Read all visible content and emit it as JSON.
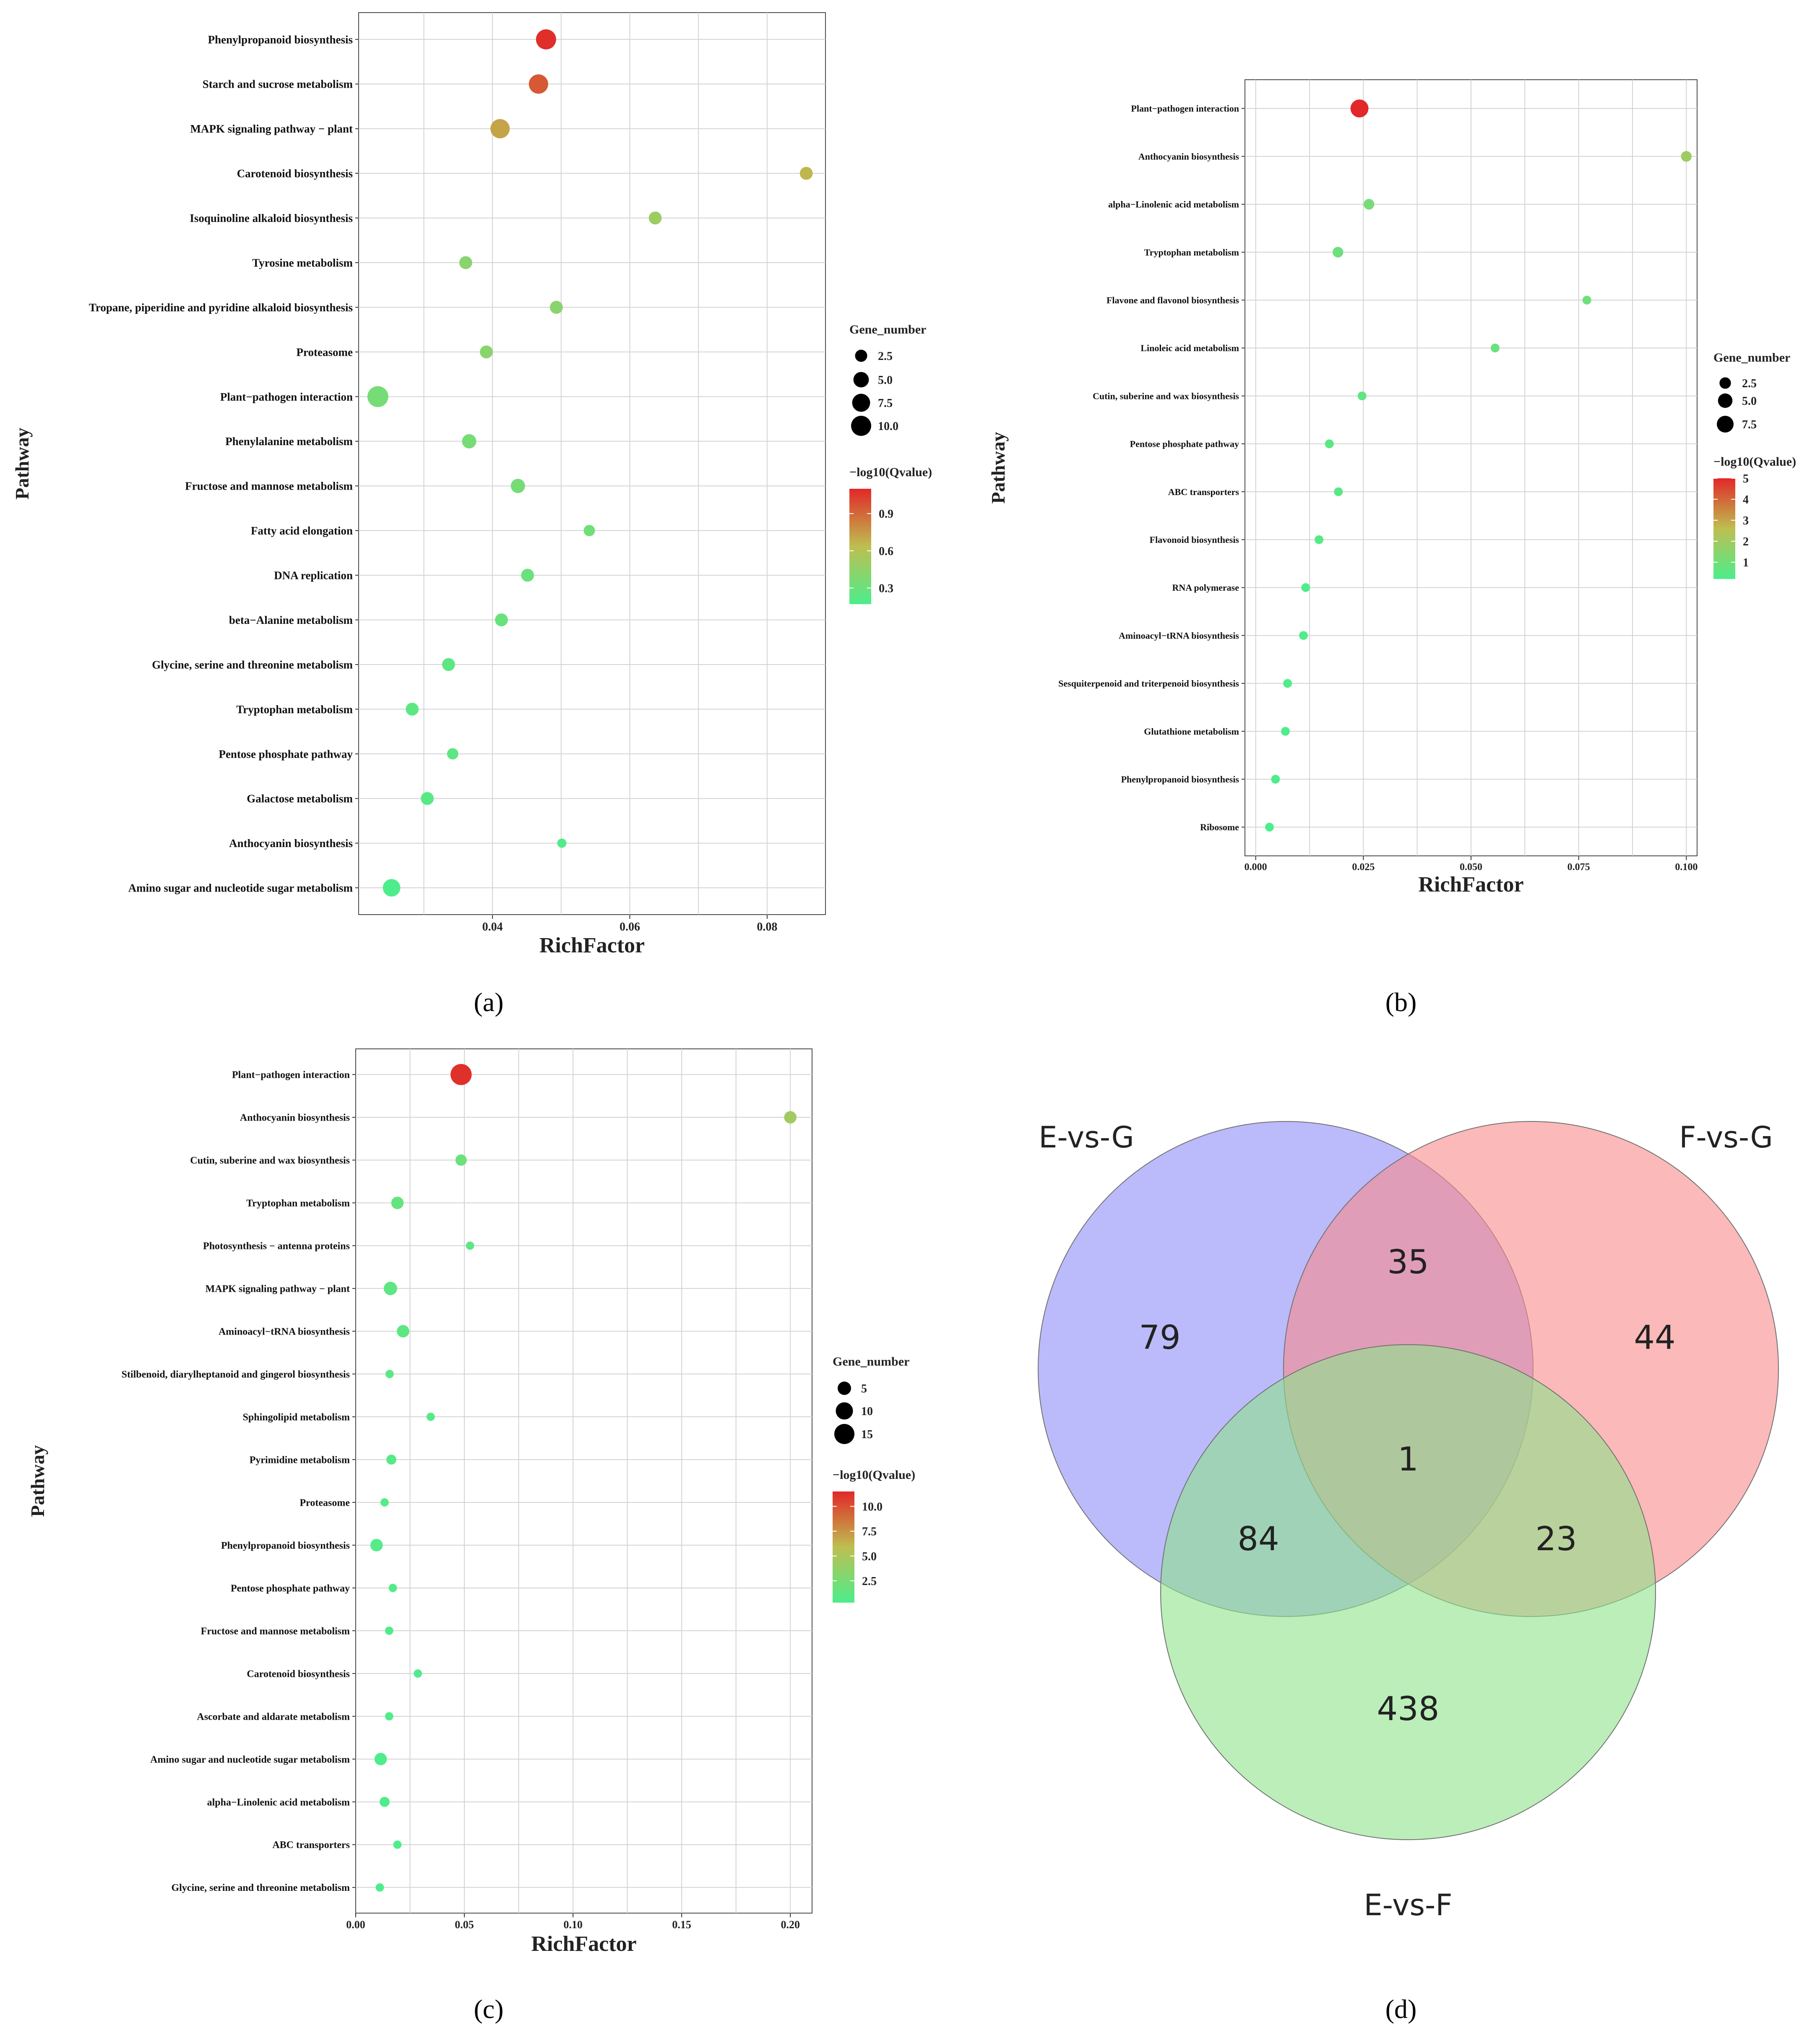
{
  "panels": {
    "a": {
      "caption": "(a)"
    },
    "b": {
      "caption": "(b)"
    },
    "c": {
      "caption": "(c)"
    },
    "d": {
      "caption": "(d)"
    }
  },
  "chart_data": [
    {
      "id": "a",
      "type": "scatter",
      "xlabel": "RichFactor",
      "ylabel": "Pathway",
      "xlim": [
        0.0205,
        0.0885
      ],
      "xticks": [
        0.04,
        0.06,
        0.08
      ],
      "tick_labels": [
        "0.04",
        "0.06",
        "0.08"
      ],
      "size_legend": {
        "title": "Gene_number",
        "values": [
          2.5,
          5.0,
          7.5,
          10.0
        ],
        "labels": [
          "2.5",
          "5.0",
          "7.5",
          "10.0"
        ]
      },
      "color_legend": {
        "title": "−log10(Qvalue)",
        "min": 0.17,
        "max": 1.1,
        "ticks": [
          0.3,
          0.6,
          0.9
        ],
        "labels": [
          "0.3",
          "0.6",
          "0.9"
        ]
      },
      "points": [
        {
          "pathway": "Phenylpropanoid biosynthesis",
          "rich_factor": 0.0478,
          "gene_number": 10,
          "qvalue": 1.08
        },
        {
          "pathway": "Starch and sucrose metabolism",
          "rich_factor": 0.0467,
          "gene_number": 9,
          "qvalue": 0.95
        },
        {
          "pathway": "MAPK signaling pathway − plant",
          "rich_factor": 0.0411,
          "gene_number": 9,
          "qvalue": 0.72
        },
        {
          "pathway": "Carotenoid biosynthesis",
          "rich_factor": 0.0857,
          "gene_number": 3,
          "qvalue": 0.66
        },
        {
          "pathway": "Isoquinoline alkaloid biosynthesis",
          "rich_factor": 0.0637,
          "gene_number": 3,
          "qvalue": 0.5
        },
        {
          "pathway": "Tyrosine metabolism",
          "rich_factor": 0.0361,
          "gene_number": 3,
          "qvalue": 0.42
        },
        {
          "pathway": "Tropane, piperidine and pyridine alkaloid biosynthesis",
          "rich_factor": 0.0493,
          "gene_number": 3,
          "qvalue": 0.42
        },
        {
          "pathway": "Proteasome",
          "rich_factor": 0.0391,
          "gene_number": 3,
          "qvalue": 0.42
        },
        {
          "pathway": "Plant−pathogen interaction",
          "rich_factor": 0.0233,
          "gene_number": 11,
          "qvalue": 0.34
        },
        {
          "pathway": "Phenylalanine metabolism",
          "rich_factor": 0.0366,
          "gene_number": 4,
          "qvalue": 0.34
        },
        {
          "pathway": "Fructose and mannose metabolism",
          "rich_factor": 0.0437,
          "gene_number": 4,
          "qvalue": 0.34
        },
        {
          "pathway": "Fatty acid elongation",
          "rich_factor": 0.0541,
          "gene_number": 2,
          "qvalue": 0.32
        },
        {
          "pathway": "DNA replication",
          "rich_factor": 0.0451,
          "gene_number": 3,
          "qvalue": 0.29
        },
        {
          "pathway": "beta−Alanine metabolism",
          "rich_factor": 0.0413,
          "gene_number": 3,
          "qvalue": 0.29
        },
        {
          "pathway": "Glycine, serine and threonine metabolism",
          "rich_factor": 0.0336,
          "gene_number": 3,
          "qvalue": 0.24
        },
        {
          "pathway": "Tryptophan metabolism",
          "rich_factor": 0.0283,
          "gene_number": 3,
          "qvalue": 0.24
        },
        {
          "pathway": "Pentose phosphate pathway",
          "rich_factor": 0.0342,
          "gene_number": 2,
          "qvalue": 0.24
        },
        {
          "pathway": "Galactose metabolism",
          "rich_factor": 0.0305,
          "gene_number": 3,
          "qvalue": 0.22
        },
        {
          "pathway": "Anthocyanin biosynthesis",
          "rich_factor": 0.0501,
          "gene_number": 1,
          "qvalue": 0.2
        },
        {
          "pathway": "Amino sugar and nucleotide sugar metabolism",
          "rich_factor": 0.0253,
          "gene_number": 7,
          "qvalue": 0.18
        }
      ]
    },
    {
      "id": "b",
      "type": "scatter",
      "xlabel": "RichFactor",
      "ylabel": "Pathway",
      "xlim": [
        -0.0025,
        0.1025
      ],
      "xticks": [
        0,
        0.025,
        0.05,
        0.075,
        0.1
      ],
      "tick_labels": [
        "0.000",
        "0.025",
        "0.050",
        "0.075",
        "0.100"
      ],
      "size_legend": {
        "title": "Gene_number",
        "values": [
          2.5,
          5.0,
          7.5
        ],
        "labels": [
          "2.5",
          "5.0",
          "7.5"
        ]
      },
      "color_legend": {
        "title": "−log10(Qvalue)",
        "min": 0.2,
        "max": 5.0,
        "ticks": [
          1,
          2,
          3,
          4,
          5
        ],
        "labels": [
          "1",
          "2",
          "3",
          "4",
          "5"
        ]
      },
      "points": [
        {
          "pathway": "Plant−pathogen interaction",
          "rich_factor": 0.0241,
          "gene_number": 9,
          "qvalue": 5.0
        },
        {
          "pathway": "Anthocyanin biosynthesis",
          "rich_factor": 0.1,
          "gene_number": 2,
          "qvalue": 1.9
        },
        {
          "pathway": "alpha−Linolenic acid metabolism",
          "rich_factor": 0.0263,
          "gene_number": 2,
          "qvalue": 1.1
        },
        {
          "pathway": "Tryptophan metabolism",
          "rich_factor": 0.0191,
          "gene_number": 2,
          "qvalue": 0.9
        },
        {
          "pathway": "Flavone and flavonol biosynthesis",
          "rich_factor": 0.0769,
          "gene_number": 1,
          "qvalue": 0.9
        },
        {
          "pathway": "Linoleic acid metabolism",
          "rich_factor": 0.0556,
          "gene_number": 1,
          "qvalue": 0.8
        },
        {
          "pathway": "Cutin, suberine and wax biosynthesis",
          "rich_factor": 0.0247,
          "gene_number": 1,
          "qvalue": 0.6
        },
        {
          "pathway": "Pentose phosphate pathway",
          "rich_factor": 0.0171,
          "gene_number": 1,
          "qvalue": 0.5
        },
        {
          "pathway": "ABC transporters",
          "rich_factor": 0.0192,
          "gene_number": 1,
          "qvalue": 0.5
        },
        {
          "pathway": "Flavonoid biosynthesis",
          "rich_factor": 0.0147,
          "gene_number": 1,
          "qvalue": 0.4
        },
        {
          "pathway": "RNA polymerase",
          "rich_factor": 0.0116,
          "gene_number": 1,
          "qvalue": 0.3
        },
        {
          "pathway": "Aminoacyl−tRNA biosynthesis",
          "rich_factor": 0.0111,
          "gene_number": 1,
          "qvalue": 0.3
        },
        {
          "pathway": "Sesquiterpenoid and triterpenoid biosynthesis",
          "rich_factor": 0.0074,
          "gene_number": 1,
          "qvalue": 0.3
        },
        {
          "pathway": "Glutathione metabolism",
          "rich_factor": 0.0069,
          "gene_number": 1,
          "qvalue": 0.25
        },
        {
          "pathway": "Phenylpropanoid biosynthesis",
          "rich_factor": 0.0046,
          "gene_number": 1,
          "qvalue": 0.2
        },
        {
          "pathway": "Ribosome",
          "rich_factor": 0.0032,
          "gene_number": 1,
          "qvalue": 0.2
        }
      ]
    },
    {
      "id": "c",
      "type": "scatter",
      "xlabel": "RichFactor",
      "ylabel": "Pathway",
      "xlim": [
        0.0,
        0.21
      ],
      "xticks": [
        0,
        0.05,
        0.1,
        0.15,
        0.2
      ],
      "tick_labels": [
        "0.00",
        "0.05",
        "0.10",
        "0.15",
        "0.20"
      ],
      "size_legend": {
        "title": "Gene_number",
        "values": [
          5,
          10,
          15
        ],
        "labels": [
          "5",
          "10",
          "15"
        ]
      },
      "color_legend": {
        "title": "−log10(Qvalue)",
        "min": 0.3,
        "max": 11.5,
        "ticks": [
          2.5,
          5.0,
          7.5,
          10.0
        ],
        "labels": [
          "2.5",
          "5.0",
          "7.5",
          "10.0"
        ]
      },
      "points": [
        {
          "pathway": "Plant−pathogen interaction",
          "rich_factor": 0.0485,
          "gene_number": 17,
          "qvalue": 11.2
        },
        {
          "pathway": "Anthocyanin biosynthesis",
          "rich_factor": 0.2,
          "gene_number": 4,
          "qvalue": 4.5
        },
        {
          "pathway": "Cutin, suberine and wax biosynthesis",
          "rich_factor": 0.0485,
          "gene_number": 3,
          "qvalue": 1.8
        },
        {
          "pathway": "Tryptophan metabolism",
          "rich_factor": 0.0192,
          "gene_number": 4,
          "qvalue": 1.5
        },
        {
          "pathway": "Photosynthesis − antenna proteins",
          "rich_factor": 0.0526,
          "gene_number": 1,
          "qvalue": 1.2
        },
        {
          "pathway": "MAPK signaling pathway − plant",
          "rich_factor": 0.016,
          "gene_number": 5,
          "qvalue": 1.2
        },
        {
          "pathway": "Aminoacyl−tRNA biosynthesis",
          "rich_factor": 0.0218,
          "gene_number": 4,
          "qvalue": 1.1
        },
        {
          "pathway": "Stilbenoid, diarylheptanoid and gingerol biosynthesis",
          "rich_factor": 0.0156,
          "gene_number": 1,
          "qvalue": 0.9
        },
        {
          "pathway": "Sphingolipid metabolism",
          "rich_factor": 0.0345,
          "gene_number": 1,
          "qvalue": 0.8
        },
        {
          "pathway": "Pyrimidine metabolism",
          "rich_factor": 0.0164,
          "gene_number": 2,
          "qvalue": 0.8
        },
        {
          "pathway": "Proteasome",
          "rich_factor": 0.0133,
          "gene_number": 1,
          "qvalue": 0.7
        },
        {
          "pathway": "Phenylpropanoid biosynthesis",
          "rich_factor": 0.0096,
          "gene_number": 4,
          "qvalue": 0.7
        },
        {
          "pathway": "Pentose phosphate pathway",
          "rich_factor": 0.0171,
          "gene_number": 1,
          "qvalue": 0.6
        },
        {
          "pathway": "Fructose and mannose metabolism",
          "rich_factor": 0.0154,
          "gene_number": 1,
          "qvalue": 0.6
        },
        {
          "pathway": "Carotenoid biosynthesis",
          "rich_factor": 0.0286,
          "gene_number": 1,
          "qvalue": 0.5
        },
        {
          "pathway": "Ascorbate and aldarate metabolism",
          "rich_factor": 0.0154,
          "gene_number": 1,
          "qvalue": 0.5
        },
        {
          "pathway": "Amino sugar and nucleotide sugar metabolism",
          "rich_factor": 0.0115,
          "gene_number": 4,
          "qvalue": 0.4
        },
        {
          "pathway": "alpha−Linolenic acid metabolism",
          "rich_factor": 0.0133,
          "gene_number": 2,
          "qvalue": 0.4
        },
        {
          "pathway": "ABC transporters",
          "rich_factor": 0.0192,
          "gene_number": 1,
          "qvalue": 0.4
        },
        {
          "pathway": "Glycine, serine and threonine metabolism",
          "rich_factor": 0.0111,
          "gene_number": 1,
          "qvalue": 0.3
        }
      ]
    },
    {
      "id": "d",
      "type": "venn",
      "sets": [
        {
          "name": "E-vs-G",
          "color": "#8e8cf7"
        },
        {
          "name": "F-vs-G",
          "color": "#f98b8b"
        },
        {
          "name": "E-vs-F",
          "color": "#8ee38a"
        }
      ],
      "regions": {
        "E_only": 79,
        "F_only": 44,
        "EF_only": 438,
        "E_F": 35,
        "E_EF": 84,
        "F_EF": 23,
        "all": 1
      }
    }
  ]
}
